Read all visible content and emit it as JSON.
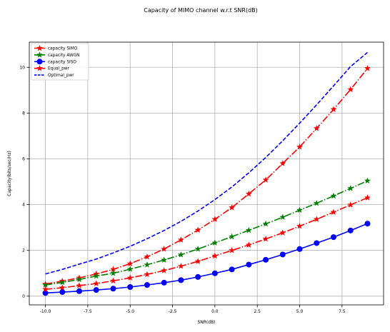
{
  "chart_data": {
    "type": "line",
    "title": "Capacity of MIMO channel w.r.t SNR(dB)",
    "xlabel": "SNR(dB)",
    "ylabel": "Capacity(bits/sec/Hz)",
    "xlim": [
      -10.95,
      9.95
    ],
    "ylim": [
      -0.38,
      11.1
    ],
    "grid": true,
    "legend_position": "top-left",
    "x_ticks": [
      -10,
      -7.5,
      -5,
      -2.5,
      0,
      2.5,
      5,
      7.5
    ],
    "x_tick_labels": [
      "-10.0",
      "-7.5",
      "-5.0",
      "-2.5",
      "0.0",
      "2.5",
      "5.0",
      "7.5"
    ],
    "y_ticks": [
      0,
      2,
      4,
      6,
      8,
      10
    ],
    "y_tick_labels": [
      "0",
      "2",
      "4",
      "6",
      "8",
      "10"
    ],
    "x": [
      -10,
      -9,
      -8,
      -7,
      -6,
      -5,
      -4,
      -3,
      -2,
      -1,
      0,
      1,
      2,
      3,
      4,
      5,
      6,
      7,
      8,
      9
    ],
    "series": [
      {
        "name": "capacity SIMO",
        "color": "#ff0000",
        "linestyle": "dashdot",
        "marker": "star",
        "values": [
          0.53,
          0.66,
          0.8,
          0.97,
          1.17,
          1.42,
          1.72,
          2.06,
          2.46,
          2.89,
          3.36,
          3.87,
          4.47,
          5.08,
          5.8,
          6.52,
          7.33,
          8.16,
          9.03,
          9.95
        ]
      },
      {
        "name": "capacity AWGN",
        "color": "#008000",
        "linestyle": "dashdot",
        "marker": "star",
        "values": [
          0.49,
          0.6,
          0.73,
          0.88,
          1.0,
          1.18,
          1.37,
          1.58,
          1.81,
          2.06,
          2.33,
          2.6,
          2.88,
          3.16,
          3.45,
          3.76,
          4.06,
          4.38,
          4.71,
          5.04
        ]
      },
      {
        "name": "capacity SISO",
        "color": "#0000ff",
        "linestyle": "solid",
        "marker": "circle",
        "values": [
          0.14,
          0.18,
          0.22,
          0.27,
          0.33,
          0.4,
          0.49,
          0.59,
          0.7,
          0.84,
          1.0,
          1.17,
          1.38,
          1.59,
          1.82,
          2.06,
          2.32,
          2.58,
          2.87,
          3.17
        ]
      },
      {
        "name": "Equal_pwr",
        "color": "#ff0000",
        "linestyle": "dashdot",
        "marker": "star",
        "values": [
          0.3,
          0.37,
          0.46,
          0.55,
          0.67,
          0.8,
          0.95,
          1.12,
          1.31,
          1.52,
          1.76,
          2.0,
          2.24,
          2.5,
          2.77,
          3.06,
          3.36,
          3.67,
          3.99,
          4.3
        ]
      },
      {
        "name": "Optimal_pwr",
        "color": "#0000ff",
        "linestyle": "dashed",
        "marker": "none",
        "values": [
          0.97,
          1.17,
          1.4,
          1.62,
          1.89,
          2.18,
          2.51,
          2.87,
          3.27,
          3.72,
          4.22,
          4.77,
          5.39,
          6.06,
          6.79,
          7.56,
          8.36,
          9.19,
          10.03,
          10.65
        ]
      }
    ]
  }
}
